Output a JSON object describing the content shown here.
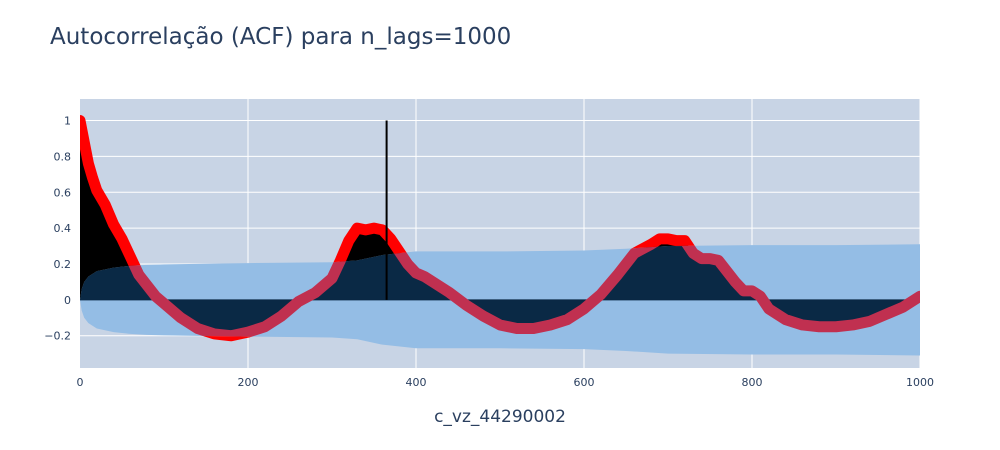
{
  "chart_data": {
    "type": "line",
    "title": "Autocorrelação (ACF) para n_lags=1000",
    "xlabel": "c_vz_44290002",
    "ylabel": "",
    "xlim": [
      0,
      1000
    ],
    "ylim": [
      -0.38,
      1.12
    ],
    "xticks": [
      0,
      200,
      400,
      600,
      800,
      1000
    ],
    "yticks": [
      -0.2,
      0,
      0.2,
      0.4,
      0.6,
      0.8,
      1
    ],
    "ytick_labels": [
      "−0.2",
      "0",
      "0.2",
      "0.4",
      "0.6",
      "0.8",
      "1"
    ],
    "grid": true,
    "vertical_line": {
      "x": 365,
      "y": [
        0,
        1
      ]
    },
    "acf": {
      "x": [
        0,
        5,
        10,
        15,
        20,
        30,
        40,
        50,
        60,
        70,
        80,
        90,
        100,
        120,
        140,
        160,
        180,
        200,
        220,
        240,
        260,
        280,
        300,
        310,
        320,
        330,
        340,
        350,
        360,
        370,
        380,
        390,
        400,
        410,
        420,
        440,
        460,
        480,
        500,
        520,
        540,
        560,
        580,
        600,
        620,
        640,
        660,
        680,
        690,
        700,
        710,
        720,
        730,
        740,
        750,
        760,
        770,
        780,
        790,
        800,
        810,
        820,
        840,
        860,
        880,
        900,
        920,
        940,
        960,
        980,
        1000
      ],
      "y": [
        1.0,
        0.88,
        0.76,
        0.68,
        0.61,
        0.53,
        0.42,
        0.34,
        0.24,
        0.14,
        0.08,
        0.02,
        -0.02,
        -0.1,
        -0.16,
        -0.19,
        -0.2,
        -0.18,
        -0.15,
        -0.09,
        -0.01,
        0.04,
        0.12,
        0.22,
        0.33,
        0.4,
        0.39,
        0.4,
        0.39,
        0.34,
        0.27,
        0.2,
        0.15,
        0.13,
        0.1,
        0.04,
        -0.03,
        -0.09,
        -0.14,
        -0.16,
        -0.16,
        -0.14,
        -0.11,
        -0.05,
        0.03,
        0.14,
        0.26,
        0.31,
        0.34,
        0.34,
        0.33,
        0.33,
        0.26,
        0.23,
        0.23,
        0.22,
        0.16,
        0.1,
        0.05,
        0.05,
        0.02,
        -0.05,
        -0.11,
        -0.14,
        -0.15,
        -0.15,
        -0.14,
        -0.12,
        -0.08,
        -0.04,
        0.02
      ]
    },
    "confidence_band": {
      "x": [
        0,
        2,
        5,
        10,
        20,
        40,
        60,
        80,
        100,
        200,
        300,
        330,
        360,
        400,
        500,
        600,
        650,
        700,
        800,
        900,
        1000
      ],
      "upper": [
        0.0,
        0.06,
        0.1,
        0.13,
        0.16,
        0.18,
        0.19,
        0.195,
        0.198,
        0.205,
        0.21,
        0.22,
        0.25,
        0.27,
        0.27,
        0.275,
        0.285,
        0.3,
        0.305,
        0.305,
        0.31
      ],
      "lower": [
        0.0,
        -0.06,
        -0.1,
        -0.13,
        -0.16,
        -0.18,
        -0.19,
        -0.195,
        -0.198,
        -0.205,
        -0.21,
        -0.22,
        -0.25,
        -0.27,
        -0.27,
        -0.275,
        -0.285,
        -0.3,
        -0.305,
        -0.305,
        -0.31
      ]
    },
    "colors": {
      "plot_background": "#c8d4e5",
      "grid": "#ffffff",
      "band": "#94bde5",
      "below_band_fill": "#0a2945",
      "outside_band_fill": "#000000",
      "acf_outside": "#ff0000",
      "acf_inside": "#c03050",
      "text": "#2a3f5f"
    }
  }
}
